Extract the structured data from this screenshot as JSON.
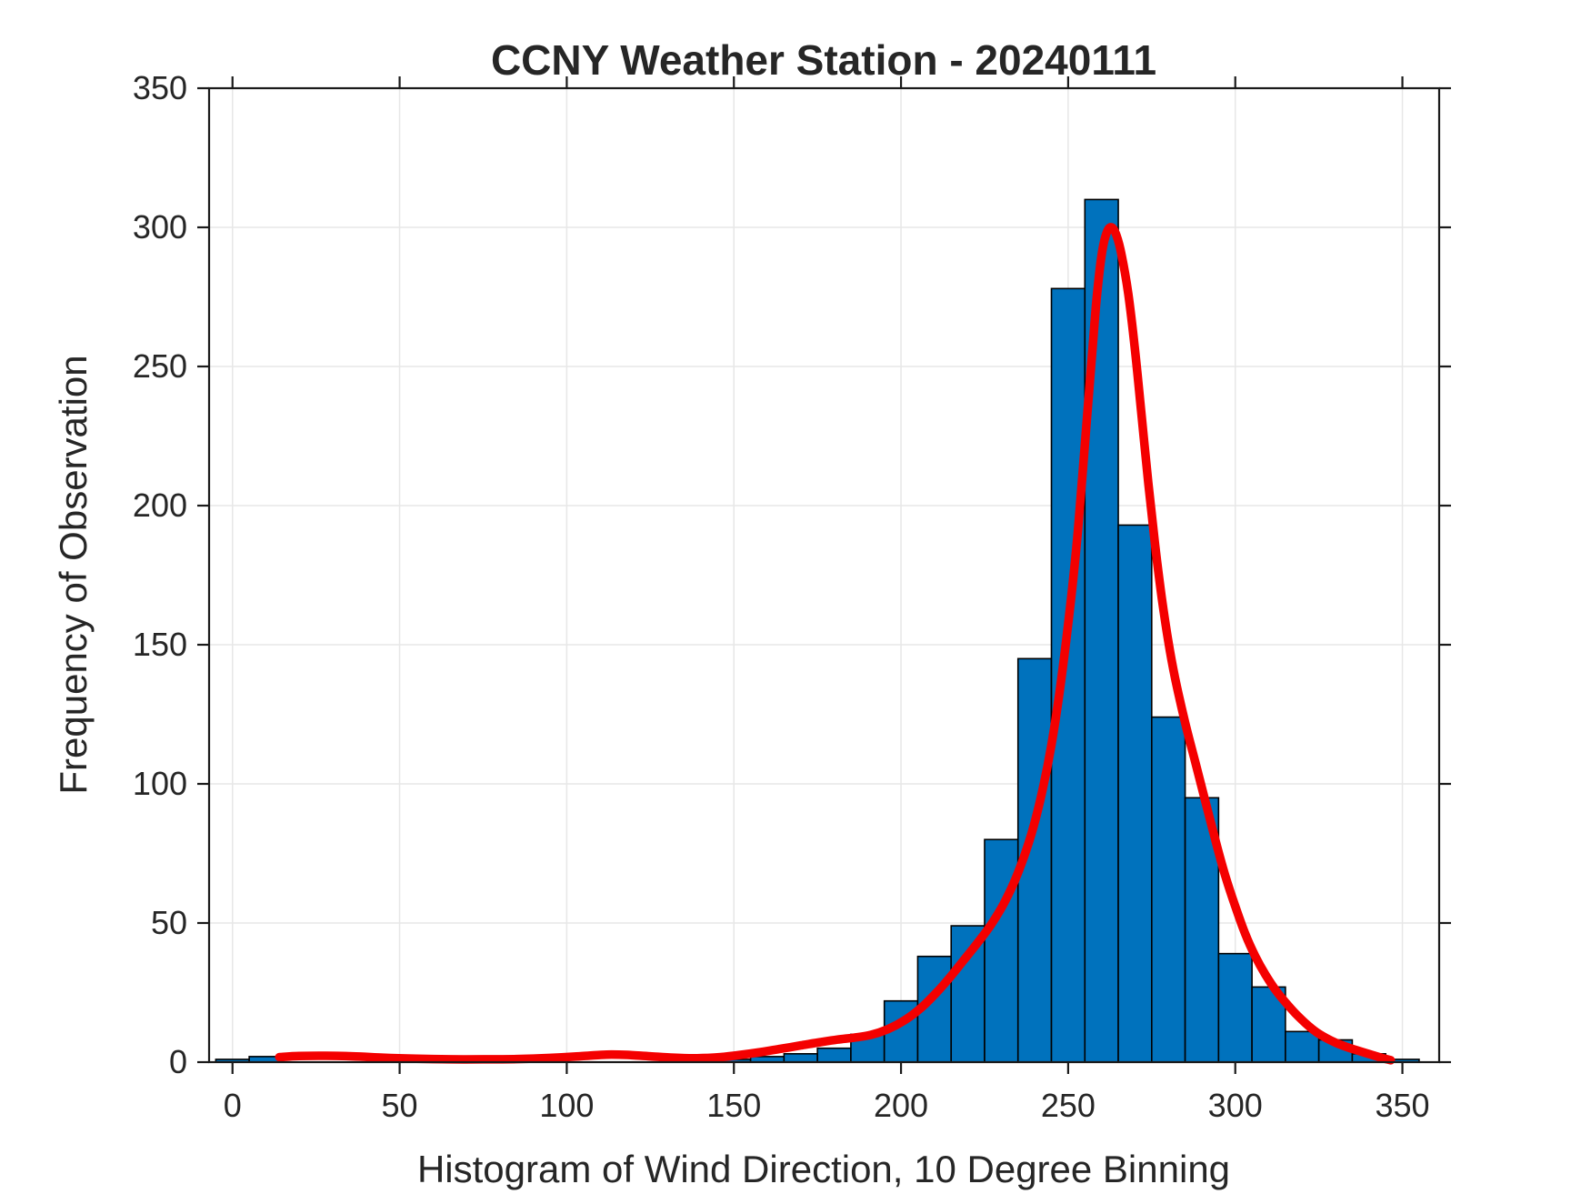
{
  "figure": {
    "background": "#FFFFFF"
  },
  "chart_data": {
    "type": "bar",
    "subtype": "histogram-with-smoothed-curve",
    "title": "CCNY Weather Station - 20240111",
    "xlabel": "Histogram of Wind Direction, 10 Degree Binning",
    "ylabel": "Frequency of Observation",
    "bin_width": 10,
    "bin_centers": [
      0,
      10,
      20,
      30,
      40,
      50,
      60,
      70,
      80,
      90,
      100,
      110,
      120,
      130,
      140,
      150,
      160,
      170,
      180,
      190,
      200,
      210,
      220,
      230,
      240,
      250,
      260,
      270,
      280,
      290,
      300,
      310,
      320,
      330,
      340,
      350
    ],
    "counts": [
      1,
      2,
      0,
      0,
      0,
      0,
      0,
      0,
      0,
      0,
      0,
      0,
      0,
      0,
      0,
      1,
      2,
      3,
      5,
      10,
      22,
      38,
      49,
      80,
      145,
      278,
      310,
      193,
      124,
      95,
      39,
      27,
      11,
      8,
      3,
      1
    ],
    "series": [
      {
        "name": "wind-direction-histogram",
        "kind": "histogram",
        "face_color": "#0072BD",
        "edge_color": "#000000"
      },
      {
        "name": "smoothed-fit-curve",
        "kind": "line",
        "color": "#F40000",
        "line_width": 9.5,
        "points": [
          [
            14,
            1.8
          ],
          [
            20,
            2.2
          ],
          [
            28,
            2.3
          ],
          [
            36,
            2.1
          ],
          [
            45,
            1.6
          ],
          [
            55,
            1.2
          ],
          [
            65,
            1.0
          ],
          [
            75,
            1.0
          ],
          [
            85,
            1.1
          ],
          [
            95,
            1.5
          ],
          [
            105,
            2.2
          ],
          [
            112,
            2.7
          ],
          [
            118,
            2.6
          ],
          [
            125,
            2.1
          ],
          [
            132,
            1.6
          ],
          [
            139,
            1.4
          ],
          [
            146,
            1.8
          ],
          [
            152,
            2.6
          ],
          [
            158,
            3.6
          ],
          [
            164,
            4.8
          ],
          [
            170,
            6.0
          ],
          [
            176,
            7.2
          ],
          [
            181,
            8.1
          ],
          [
            186,
            8.8
          ],
          [
            191,
            9.8
          ],
          [
            196,
            11.8
          ],
          [
            201,
            15
          ],
          [
            206,
            19.5
          ],
          [
            211,
            25.5
          ],
          [
            215,
            31
          ],
          [
            219,
            37
          ],
          [
            223,
            43
          ],
          [
            227,
            49.5
          ],
          [
            231,
            57.5
          ],
          [
            235,
            68
          ],
          [
            239,
            82
          ],
          [
            242,
            96
          ],
          [
            245,
            114
          ],
          [
            248,
            138
          ],
          [
            251,
            168
          ],
          [
            253,
            192
          ],
          [
            255,
            222
          ],
          [
            257,
            252
          ],
          [
            258.5,
            274
          ],
          [
            260,
            290
          ],
          [
            261.5,
            298
          ],
          [
            263,
            300
          ],
          [
            264.5,
            297
          ],
          [
            266,
            290
          ],
          [
            268,
            276
          ],
          [
            270,
            256
          ],
          [
            272,
            232
          ],
          [
            274,
            208
          ],
          [
            276,
            186
          ],
          [
            278,
            167
          ],
          [
            280,
            151
          ],
          [
            282,
            138
          ],
          [
            285,
            122
          ],
          [
            288,
            108
          ],
          [
            291,
            94
          ],
          [
            294,
            80
          ],
          [
            297,
            67
          ],
          [
            300,
            56
          ],
          [
            303,
            46
          ],
          [
            306,
            38
          ],
          [
            309,
            31.5
          ],
          [
            312,
            26
          ],
          [
            315,
            21.5
          ],
          [
            318,
            17.5
          ],
          [
            321,
            14
          ],
          [
            324,
            11
          ],
          [
            327,
            8.8
          ],
          [
            330,
            7
          ],
          [
            333,
            5.6
          ],
          [
            336,
            4.4
          ],
          [
            339,
            3.3
          ],
          [
            342,
            2.2
          ],
          [
            344.5,
            1.3
          ],
          [
            346.5,
            0.7
          ]
        ]
      }
    ],
    "xlim": [
      -7,
      361
    ],
    "ylim": [
      0,
      350
    ],
    "xticks": [
      0,
      50,
      100,
      150,
      200,
      250,
      300,
      350
    ],
    "yticks": [
      0,
      50,
      100,
      150,
      200,
      250,
      300,
      350
    ],
    "grid": true,
    "legend": "none",
    "colors": {
      "grid": "#E7E7E7",
      "axis": "#1A1A1A",
      "text": "#262626",
      "bar_fill": "#0072BD",
      "bar_edge": "#000000",
      "curve": "#F40000"
    }
  }
}
